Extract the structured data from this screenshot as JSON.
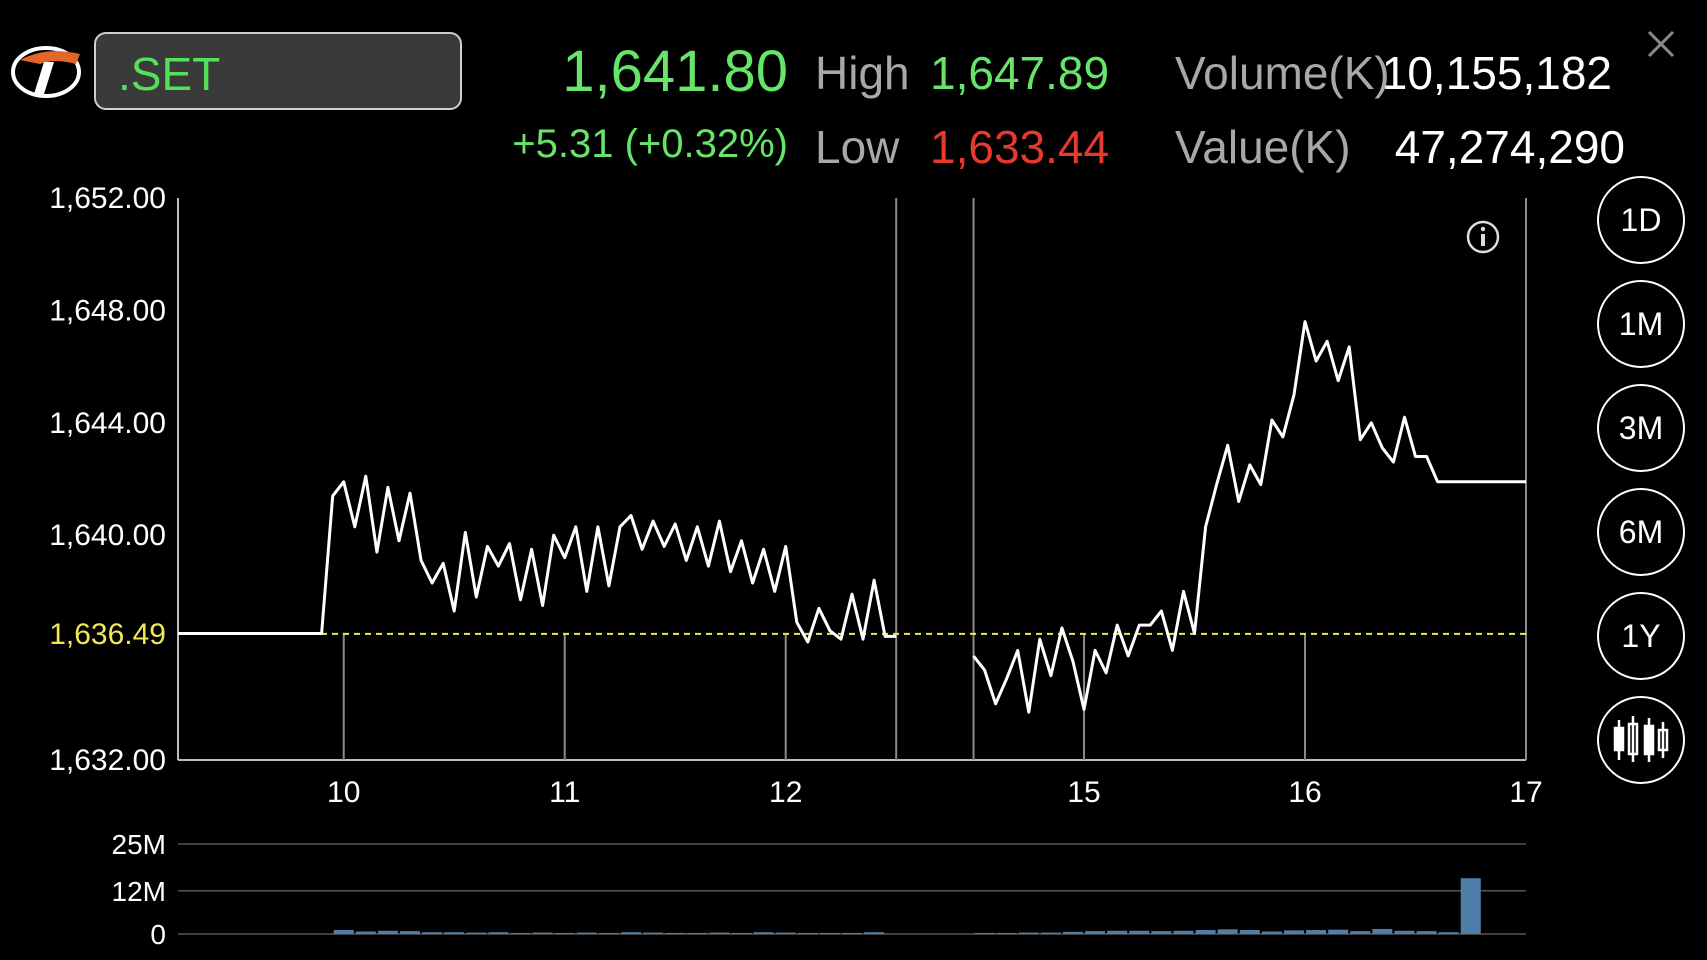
{
  "header": {
    "symbol": ".SET",
    "price": "1,641.80",
    "change": "+5.31 (+0.32%)",
    "high_label": "High",
    "high_value": "1,647.89",
    "low_label": "Low",
    "low_value": "1,633.44",
    "volume_label": "Volume(K)",
    "volume_value": "10,155,182",
    "value_label": "Value(K)",
    "value_value": "47,274,290"
  },
  "range_buttons": [
    "1D",
    "1M",
    "3M",
    "6M",
    "1Y"
  ],
  "active_range": "1D",
  "colors": {
    "up": "#66e56a",
    "down": "#e8392f",
    "reference": "#f2e65a",
    "volume": "#4f7fa8"
  },
  "chart_data": {
    "type": "line",
    "y_ticks": [
      "1,652.00",
      "1,648.00",
      "1,644.00",
      "1,640.00",
      "1,632.00"
    ],
    "y_tick_values": [
      1652,
      1648,
      1644,
      1640,
      1632
    ],
    "ylim": [
      1632,
      1652
    ],
    "reference": {
      "label": "1,636.49",
      "value": 1636.49
    },
    "x_ticks": [
      {
        "label": "10",
        "value": 0
      },
      {
        "label": "11",
        "value": 1
      },
      {
        "label": "12",
        "value": 2
      },
      {
        "label": "15",
        "value": 3.35
      },
      {
        "label": "16",
        "value": 4.35
      },
      {
        "label": "17",
        "value": 5.35
      }
    ],
    "xlim": [
      -0.75,
      5.35
    ],
    "session_breaks": [
      2.5,
      2.85
    ],
    "series": [
      {
        "segments": [
          [
            [
              -0.75,
              1636.5
            ],
            [
              -0.1,
              1636.5
            ],
            [
              -0.05,
              1641.4
            ],
            [
              0,
              1641.9
            ],
            [
              0.05,
              1640.3
            ],
            [
              0.1,
              1642.1
            ],
            [
              0.15,
              1639.4
            ],
            [
              0.2,
              1641.7
            ],
            [
              0.25,
              1639.8
            ],
            [
              0.3,
              1641.5
            ],
            [
              0.35,
              1639.1
            ],
            [
              0.4,
              1638.3
            ],
            [
              0.45,
              1639.0
            ],
            [
              0.5,
              1637.3
            ],
            [
              0.55,
              1640.1
            ],
            [
              0.6,
              1637.8
            ],
            [
              0.65,
              1639.6
            ],
            [
              0.7,
              1638.9
            ],
            [
              0.75,
              1639.7
            ],
            [
              0.8,
              1637.7
            ],
            [
              0.85,
              1639.5
            ],
            [
              0.9,
              1637.5
            ],
            [
              0.95,
              1640.0
            ],
            [
              1.0,
              1639.2
            ],
            [
              1.05,
              1640.3
            ],
            [
              1.1,
              1638.0
            ],
            [
              1.15,
              1640.3
            ],
            [
              1.2,
              1638.2
            ],
            [
              1.25,
              1640.3
            ],
            [
              1.3,
              1640.7
            ],
            [
              1.35,
              1639.5
            ],
            [
              1.4,
              1640.5
            ],
            [
              1.45,
              1639.6
            ],
            [
              1.5,
              1640.4
            ],
            [
              1.55,
              1639.1
            ],
            [
              1.6,
              1640.3
            ],
            [
              1.65,
              1638.9
            ],
            [
              1.7,
              1640.5
            ],
            [
              1.75,
              1638.7
            ],
            [
              1.8,
              1639.8
            ],
            [
              1.85,
              1638.3
            ],
            [
              1.9,
              1639.5
            ],
            [
              1.95,
              1638.0
            ],
            [
              2.0,
              1639.6
            ],
            [
              2.05,
              1636.9
            ],
            [
              2.1,
              1636.2
            ],
            [
              2.15,
              1637.4
            ],
            [
              2.2,
              1636.6
            ],
            [
              2.25,
              1636.3
            ],
            [
              2.3,
              1637.9
            ],
            [
              2.35,
              1636.3
            ],
            [
              2.4,
              1638.4
            ],
            [
              2.45,
              1636.4
            ],
            [
              2.5,
              1636.4
            ]
          ],
          [
            [
              2.85,
              1635.7
            ],
            [
              2.9,
              1635.2
            ],
            [
              2.95,
              1634.0
            ],
            [
              3.0,
              1634.9
            ],
            [
              3.05,
              1635.9
            ],
            [
              3.1,
              1633.7
            ],
            [
              3.15,
              1636.3
            ],
            [
              3.2,
              1635.0
            ],
            [
              3.25,
              1636.7
            ],
            [
              3.3,
              1635.5
            ],
            [
              3.35,
              1633.8
            ],
            [
              3.4,
              1635.9
            ],
            [
              3.45,
              1635.1
            ],
            [
              3.5,
              1636.8
            ],
            [
              3.55,
              1635.7
            ],
            [
              3.6,
              1636.8
            ],
            [
              3.65,
              1636.8
            ],
            [
              3.7,
              1637.3
            ],
            [
              3.75,
              1635.9
            ],
            [
              3.8,
              1638.0
            ],
            [
              3.85,
              1636.5
            ],
            [
              3.9,
              1640.3
            ],
            [
              3.95,
              1641.8
            ],
            [
              4.0,
              1643.2
            ],
            [
              4.05,
              1641.2
            ],
            [
              4.1,
              1642.5
            ],
            [
              4.15,
              1641.8
            ],
            [
              4.2,
              1644.1
            ],
            [
              4.25,
              1643.5
            ],
            [
              4.3,
              1645.0
            ],
            [
              4.35,
              1647.6
            ],
            [
              4.4,
              1646.2
            ],
            [
              4.45,
              1646.9
            ],
            [
              4.5,
              1645.5
            ],
            [
              4.55,
              1646.7
            ],
            [
              4.6,
              1643.4
            ],
            [
              4.65,
              1644.0
            ],
            [
              4.7,
              1643.1
            ],
            [
              4.75,
              1642.6
            ],
            [
              4.8,
              1644.2
            ],
            [
              4.85,
              1642.8
            ],
            [
              4.9,
              1642.8
            ],
            [
              4.95,
              1641.9
            ],
            [
              5.35,
              1641.9
            ]
          ]
        ]
      }
    ],
    "volume": {
      "y_ticks": [
        "25M",
        "12M",
        "0"
      ],
      "y_tick_values": [
        25,
        12,
        0
      ],
      "ylim": [
        0,
        25
      ],
      "bars": [
        [
          0,
          1.1
        ],
        [
          0.1,
          0.7
        ],
        [
          0.2,
          0.9
        ],
        [
          0.3,
          0.8
        ],
        [
          0.4,
          0.5
        ],
        [
          0.5,
          0.5
        ],
        [
          0.6,
          0.4
        ],
        [
          0.7,
          0.5
        ],
        [
          0.8,
          0.3
        ],
        [
          0.9,
          0.4
        ],
        [
          1.0,
          0.3
        ],
        [
          1.1,
          0.4
        ],
        [
          1.2,
          0.3
        ],
        [
          1.3,
          0.5
        ],
        [
          1.4,
          0.4
        ],
        [
          1.5,
          0.3
        ],
        [
          1.6,
          0.3
        ],
        [
          1.7,
          0.4
        ],
        [
          1.8,
          0.3
        ],
        [
          1.9,
          0.5
        ],
        [
          2.0,
          0.4
        ],
        [
          2.1,
          0.3
        ],
        [
          2.2,
          0.3
        ],
        [
          2.3,
          0.3
        ],
        [
          2.4,
          0.5
        ],
        [
          2.9,
          0.3
        ],
        [
          3.0,
          0.3
        ],
        [
          3.1,
          0.4
        ],
        [
          3.2,
          0.4
        ],
        [
          3.3,
          0.6
        ],
        [
          3.4,
          0.8
        ],
        [
          3.5,
          0.9
        ],
        [
          3.6,
          0.9
        ],
        [
          3.7,
          0.8
        ],
        [
          3.8,
          0.9
        ],
        [
          3.9,
          1.1
        ],
        [
          4.0,
          1.3
        ],
        [
          4.1,
          1.1
        ],
        [
          4.2,
          0.7
        ],
        [
          4.3,
          1.0
        ],
        [
          4.4,
          1.1
        ],
        [
          4.5,
          1.2
        ],
        [
          4.6,
          0.8
        ],
        [
          4.7,
          1.4
        ],
        [
          4.8,
          0.9
        ],
        [
          4.9,
          0.8
        ],
        [
          5.0,
          0.5
        ],
        [
          5.1,
          15.5
        ]
      ]
    }
  }
}
